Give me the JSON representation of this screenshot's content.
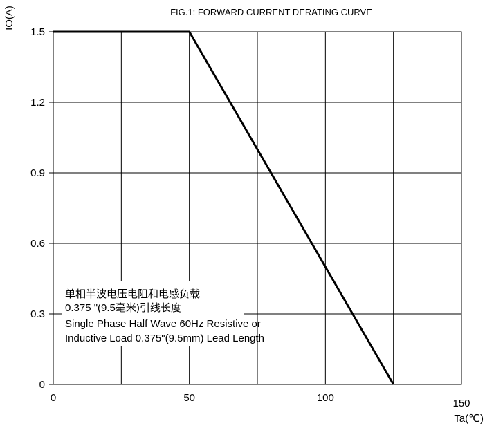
{
  "chart_data": {
    "type": "line",
    "title": "FIG.1: FORWARD CURRENT  DERATING CURVE",
    "xlabel": "Ta(℃)",
    "ylabel": "IO(A)",
    "xlim": [
      0,
      150
    ],
    "ylim": [
      0,
      1.5
    ],
    "x_ticks": [
      "0",
      "50",
      "100",
      "150"
    ],
    "y_ticks": [
      "0",
      "0.3",
      "0.6",
      "0.9",
      "1.2",
      "1.5"
    ],
    "grid": true,
    "series": [
      {
        "x": [
          0,
          50,
          125
        ],
        "y": [
          1.5,
          1.5,
          0
        ]
      }
    ],
    "annotation": [
      "单相半波电压电阻和电感负载",
      "0.375 \"(9.5毫米)引线长度",
      "Single Phase Half Wave 60Hz Resistive or",
      "Inductive Load 0.375\"(9.5mm) Lead Length"
    ]
  }
}
